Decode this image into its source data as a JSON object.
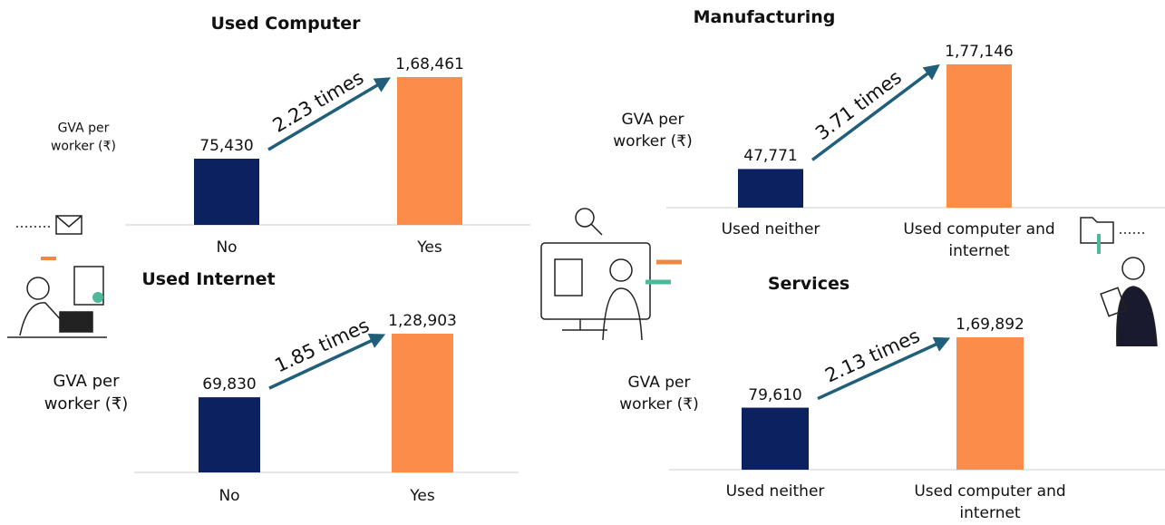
{
  "chart_data": [
    {
      "type": "bar",
      "title": "Used Computer",
      "y_label": "GVA per worker (₹)",
      "categories": [
        "No",
        "Yes"
      ],
      "values": [
        75430,
        168461
      ],
      "value_labels": [
        "75,430",
        "1,68,461"
      ],
      "colors": [
        "#0b2160",
        "#fb8c4a"
      ],
      "annotation": "2.23 times",
      "annotation_color": "#1f5f7a"
    },
    {
      "type": "bar",
      "title": "Used Internet",
      "y_label": "GVA per worker (₹)",
      "categories": [
        "No",
        "Yes"
      ],
      "values": [
        69830,
        128903
      ],
      "value_labels": [
        "69,830",
        "1,28,903"
      ],
      "colors": [
        "#0b2160",
        "#fb8c4a"
      ],
      "annotation": "1.85 times",
      "annotation_color": "#1f5f7a"
    },
    {
      "type": "bar",
      "title": "Manufacturing",
      "y_label": "GVA per worker (₹)",
      "categories": [
        "Used neither",
        "Used computer and internet"
      ],
      "values": [
        47771,
        177146
      ],
      "value_labels": [
        "47,771",
        "1,77,146"
      ],
      "colors": [
        "#0b2160",
        "#fb8c4a"
      ],
      "annotation": "3.71 times",
      "annotation_color": "#1f5f7a"
    },
    {
      "type": "bar",
      "title": "Services",
      "y_label": "GVA per worker (₹)",
      "categories": [
        "Used neither",
        "Used computer and internet"
      ],
      "values": [
        79610,
        169892
      ],
      "value_labels": [
        "79,610",
        "1,69,892"
      ],
      "colors": [
        "#0b2160",
        "#fb8c4a"
      ],
      "annotation": "2.13 times",
      "annotation_color": "#1f5f7a"
    }
  ]
}
